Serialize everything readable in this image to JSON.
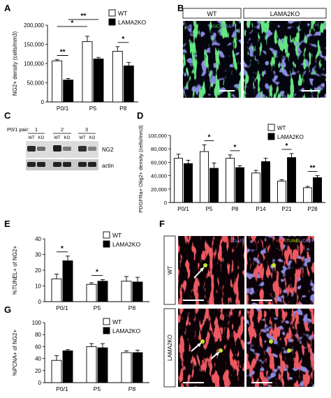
{
  "panel_letters": {
    "a": "A",
    "b": "B",
    "c": "C",
    "d": "D",
    "e": "E",
    "f": "F",
    "g": "G"
  },
  "colors": {
    "wt": "#ffffff",
    "ko": "#000000",
    "ng2_stain": "#22c43a",
    "dapi_stain": "#3a3aa8",
    "red_stain": "#d81e1e",
    "tunel_stain": "#c8e82a"
  },
  "legend": {
    "wt": "WT",
    "ko": "LAMA2KO"
  },
  "chart_data": [
    {
      "id": "A",
      "type": "bar",
      "ylabel": "NG2+ density (cells/mm3)",
      "categories": [
        "P0/1",
        "P5",
        "P8"
      ],
      "ylim": [
        0,
        200000
      ],
      "yticks": [
        "0",
        "50,000",
        "100,000",
        "150,000",
        "200,000"
      ],
      "series": [
        {
          "name": "WT",
          "values": [
            107000,
            157000,
            132000
          ],
          "errors": [
            3000,
            14000,
            12000
          ]
        },
        {
          "name": "LAMA2KO",
          "values": [
            57000,
            112000,
            94000
          ],
          "errors": [
            4000,
            4000,
            9000
          ]
        }
      ],
      "significance": [
        {
          "label": "**",
          "from": [
            0,
            0
          ],
          "to": [
            0,
            1
          ]
        },
        {
          "label": "*",
          "from": [
            0,
            0
          ],
          "to": [
            1,
            0
          ]
        },
        {
          "label": "**",
          "from": [
            0,
            1
          ],
          "to": [
            1,
            1
          ]
        },
        {
          "label": "*",
          "from": [
            2,
            0
          ],
          "to": [
            2,
            1
          ]
        }
      ]
    },
    {
      "id": "D",
      "type": "bar",
      "ylabel": "PDGFRa+ Olig2+ density (cells/mm3)",
      "categories": [
        "P0/1",
        "P5",
        "P8",
        "P14",
        "P21",
        "P28"
      ],
      "ylim": [
        0,
        100000
      ],
      "yticks": [
        "0",
        "20,000",
        "40,000",
        "60,000",
        "80,000",
        "100,000"
      ],
      "series": [
        {
          "name": "WT",
          "values": [
            66000,
            76000,
            66000,
            44000,
            32000,
            22000
          ],
          "errors": [
            6000,
            10000,
            5000,
            4000,
            2000,
            2000
          ]
        },
        {
          "name": "LAMA2KO",
          "values": [
            58000,
            51000,
            52000,
            61000,
            67000,
            37000
          ],
          "errors": [
            5000,
            8000,
            3000,
            5000,
            6000,
            3000
          ]
        }
      ],
      "significance": [
        {
          "label": "*",
          "from": [
            1,
            0
          ],
          "to": [
            1,
            1
          ]
        },
        {
          "label": "*",
          "from": [
            2,
            0
          ],
          "to": [
            2,
            1
          ]
        },
        {
          "label": "*",
          "from": [
            4,
            0
          ],
          "to": [
            4,
            1
          ]
        },
        {
          "label": "**",
          "from": [
            5,
            0
          ],
          "to": [
            5,
            1
          ]
        }
      ]
    },
    {
      "id": "E",
      "type": "bar",
      "ylabel": "%TUNEL+ of NG2+",
      "categories": [
        "P0/1",
        "P5",
        "P8"
      ],
      "ylim": [
        0,
        40
      ],
      "yticks": [
        "0",
        "10",
        "20",
        "30",
        "40"
      ],
      "series": [
        {
          "name": "WT",
          "values": [
            14.5,
            11,
            13
          ],
          "errors": [
            3,
            1,
            3
          ]
        },
        {
          "name": "LAMA2KO",
          "values": [
            26,
            13,
            12.5
          ],
          "errors": [
            3,
            1,
            3
          ]
        }
      ],
      "significance": [
        {
          "label": "*",
          "from": [
            0,
            0
          ],
          "to": [
            0,
            1
          ]
        },
        {
          "label": "*",
          "from": [
            1,
            0
          ],
          "to": [
            1,
            1
          ]
        }
      ]
    },
    {
      "id": "G",
      "type": "bar",
      "ylabel": "%PCNA+ of NG2+",
      "categories": [
        "P0/1",
        "P5",
        "P8"
      ],
      "ylim": [
        0,
        100
      ],
      "yticks": [
        "0",
        "20",
        "40",
        "60",
        "80",
        "100"
      ],
      "series": [
        {
          "name": "WT",
          "values": [
            37,
            60,
            50
          ],
          "errors": [
            8,
            5,
            3
          ]
        },
        {
          "name": "LAMA2KO",
          "values": [
            53,
            58,
            50
          ],
          "errors": [
            2,
            7,
            4
          ]
        }
      ],
      "significance": []
    }
  ],
  "panel_b": {
    "wt_label": "WT",
    "ko_label": "LAMA2KO",
    "stain_1": "NG2",
    "stain_2": "/DAPI"
  },
  "panel_c": {
    "pair_label": "P0/1 pair:",
    "pairs": [
      "1",
      "2",
      "3"
    ],
    "lanes": [
      "WT",
      "KO",
      "WT",
      "KO",
      "WT",
      "KO"
    ],
    "bands": [
      "NG2",
      "actin"
    ]
  },
  "panel_f": {
    "row_wt": "WT",
    "row_ko": "LAMA2KO",
    "left_stain_1": "NG2",
    "left_stain_2": "/DAPI",
    "right_stain_1": "NG2",
    "right_stain_2": "/TUNEL",
    "right_stain_3": "/DAPI"
  }
}
